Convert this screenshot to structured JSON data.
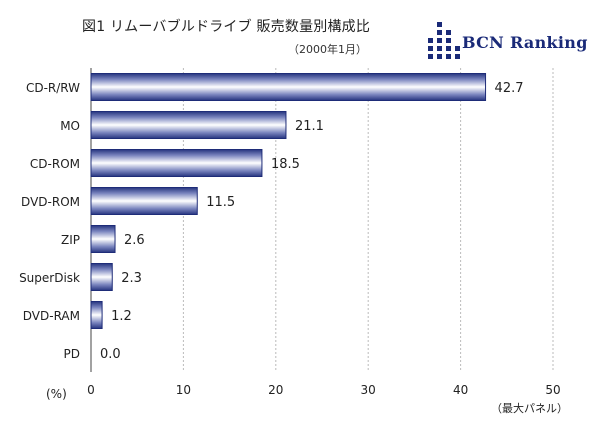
{
  "header": {
    "title": "図1 リムーバブルドライブ 販売数量別構成比",
    "subtitle": "（2000年1月）",
    "logo_text": "BCN Ranking"
  },
  "chart_data": {
    "type": "bar",
    "orientation": "horizontal",
    "categories": [
      "CD-R/RW",
      "MO",
      "CD-ROM",
      "DVD-ROM",
      "ZIP",
      "SuperDisk",
      "DVD-RAM",
      "PD"
    ],
    "values": [
      42.7,
      21.1,
      18.5,
      11.5,
      2.6,
      2.3,
      1.2,
      0.0
    ],
    "value_labels": [
      "42.7",
      "21.1",
      "18.5",
      "11.5",
      "2.6",
      "2.3",
      "1.2",
      "0.0"
    ],
    "xlim": [
      0,
      50
    ],
    "xticks": [
      "0",
      "10",
      "20",
      "30",
      "40",
      "50"
    ],
    "xunit": "(%)",
    "note": "（最大パネル）",
    "grid": true,
    "colors": {
      "bar_edge": "#1e2c78",
      "bar_dark": "#3b4a96",
      "bar_light": "#ffffff",
      "grid": "#bbbbbb",
      "axis": "#444444"
    }
  }
}
